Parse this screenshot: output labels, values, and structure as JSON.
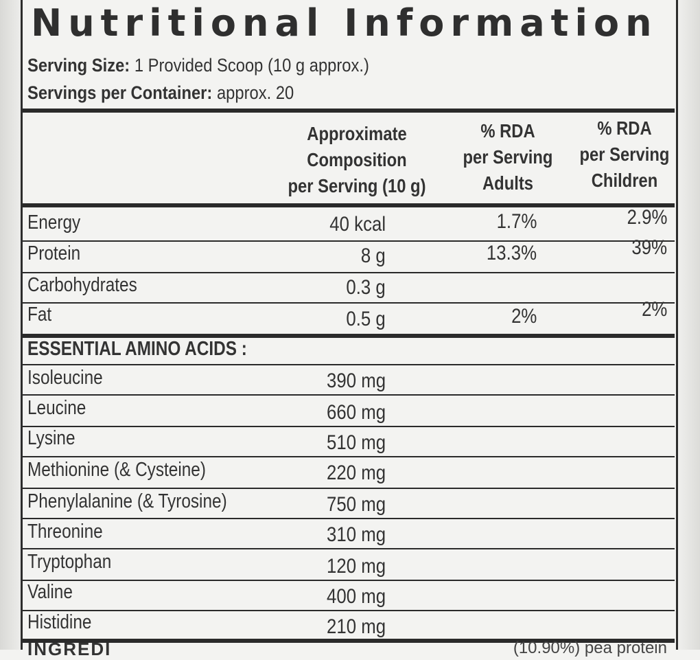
{
  "title": "Nutritional Information",
  "serving_size": {
    "label": "Serving Size:",
    "value": "1 Provided Scoop (10 g approx.)"
  },
  "servings_per_container": {
    "label": "Servings per Container:",
    "value": "approx. 20"
  },
  "headers": {
    "composition": [
      "Approximate",
      "Composition",
      "per Serving (10 g)"
    ],
    "rda_adults": [
      "% RDA",
      "per Serving",
      "Adults"
    ],
    "rda_children": [
      "% RDA",
      "per Serving",
      "Children"
    ]
  },
  "macros": [
    {
      "name": "Energy",
      "amount": "40 kcal",
      "adults": "1.7%",
      "children": "2.9%"
    },
    {
      "name": "Protein",
      "amount": "8 g",
      "adults": "13.3%",
      "children": "39%"
    },
    {
      "name": "Carbohydrates",
      "amount": "0.3 g",
      "adults": "",
      "children": ""
    },
    {
      "name": "Fat",
      "amount": "0.5 g",
      "adults": "2%",
      "children": "2%"
    }
  ],
  "amino_heading": "ESSENTIAL AMINO ACIDS :",
  "amino_acids": [
    {
      "name": "Isoleucine",
      "amount": "390 mg"
    },
    {
      "name": "Leucine",
      "amount": "660 mg"
    },
    {
      "name": "Lysine",
      "amount": "510 mg"
    },
    {
      "name": "Methionine (& Cysteine)",
      "amount": "220 mg"
    },
    {
      "name": "Phenylalanine (& Tyrosine)",
      "amount": "750 mg"
    },
    {
      "name": "Threonine",
      "amount": "310 mg"
    },
    {
      "name": "Tryptophan",
      "amount": "120 mg"
    },
    {
      "name": "Valine",
      "amount": "400 mg"
    },
    {
      "name": "Histidine",
      "amount": "210 mg"
    }
  ],
  "footer_left": "INGREDI",
  "footer_right": "(10.90%) pea protein"
}
